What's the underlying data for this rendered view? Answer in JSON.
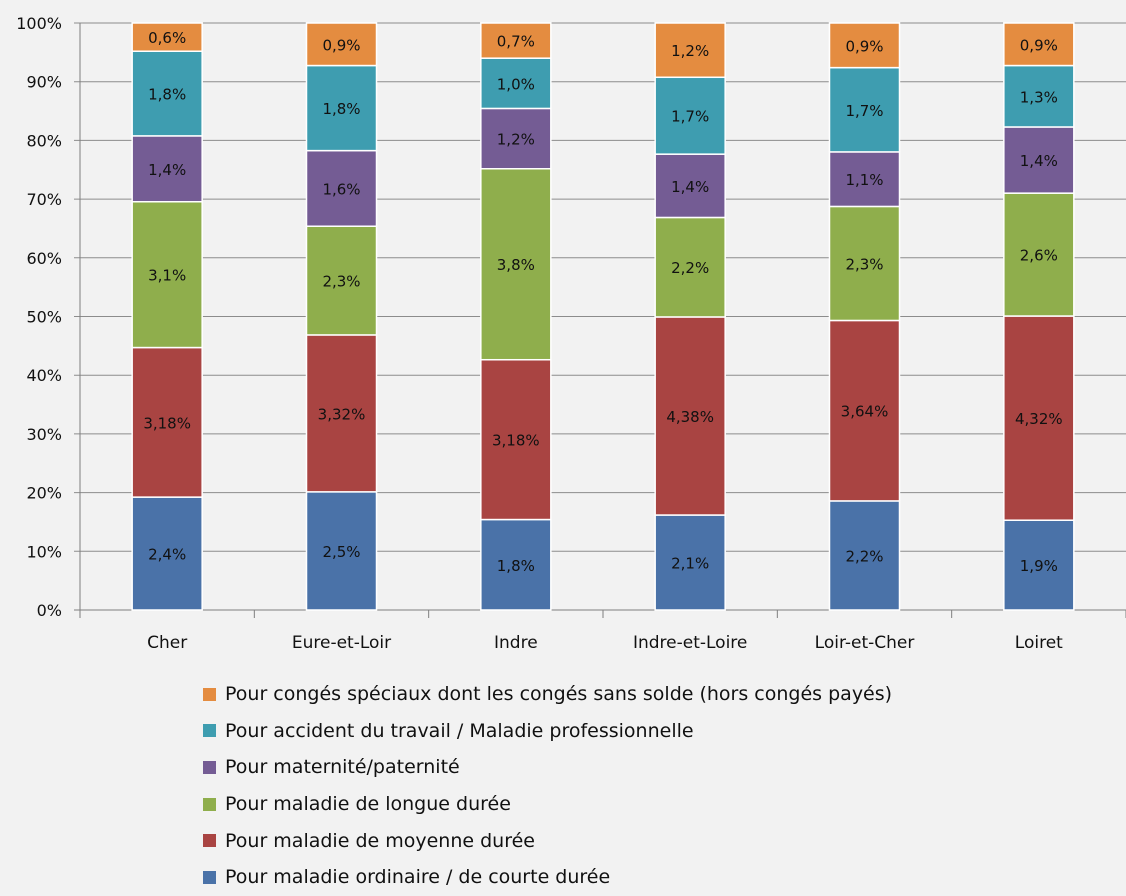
{
  "chart_data": {
    "type": "bar",
    "stacked": "percent",
    "categories": [
      "Cher",
      "Eure-et-Loir",
      "Indre",
      "Indre-et-Loire",
      "Loir-et-Cher",
      "Loiret"
    ],
    "ylim": [
      0,
      100
    ],
    "yticks": [
      "0%",
      "10%",
      "20%",
      "30%",
      "40%",
      "50%",
      "60%",
      "70%",
      "80%",
      "90%",
      "100%"
    ],
    "grid": true,
    "legend_position": "bottom",
    "series": [
      {
        "name": "Pour maladie ordinaire / de courte durée",
        "color": "#4a72a8",
        "values": [
          2.4,
          2.5,
          1.8,
          2.1,
          2.2,
          1.9
        ],
        "labels": [
          "2,4%",
          "2,5%",
          "1,8%",
          "2,1%",
          "2,2%",
          "1,9%"
        ]
      },
      {
        "name": "Pour maladie de moyenne durée",
        "color": "#a94442",
        "values": [
          3.18,
          3.32,
          3.18,
          4.38,
          3.64,
          4.32
        ],
        "labels": [
          "3,18%",
          "3,32%",
          "3,18%",
          "4,38%",
          "3,64%",
          "4,32%"
        ]
      },
      {
        "name": "Pour maladie de longue durée",
        "color": "#8fae4c",
        "values": [
          3.1,
          2.3,
          3.8,
          2.2,
          2.3,
          2.6
        ],
        "labels": [
          "3,1%",
          "2,3%",
          "3,8%",
          "2,2%",
          "2,3%",
          "2,6%"
        ]
      },
      {
        "name": "Pour maternité/paternité",
        "color": "#745c94",
        "values": [
          1.4,
          1.6,
          1.2,
          1.4,
          1.1,
          1.4
        ],
        "labels": [
          "1,4%",
          "1,6%",
          "1,2%",
          "1,4%",
          "1,1%",
          "1,4%"
        ]
      },
      {
        "name": "Pour accident du travail / Maladie professionnelle",
        "color": "#3e9db0",
        "values": [
          1.8,
          1.8,
          1.0,
          1.7,
          1.7,
          1.3
        ],
        "labels": [
          "1,8%",
          "1,8%",
          "1,0%",
          "1,7%",
          "1,7%",
          "1,3%"
        ]
      },
      {
        "name": "Pour congés spéciaux dont les congés sans solde (hors congés payés)",
        "color": "#e48c40",
        "values": [
          0.6,
          0.9,
          0.7,
          1.2,
          0.9,
          0.9
        ],
        "labels": [
          "0,6%",
          "0,9%",
          "0,7%",
          "1,2%",
          "0,9%",
          "0,9%"
        ]
      }
    ]
  }
}
